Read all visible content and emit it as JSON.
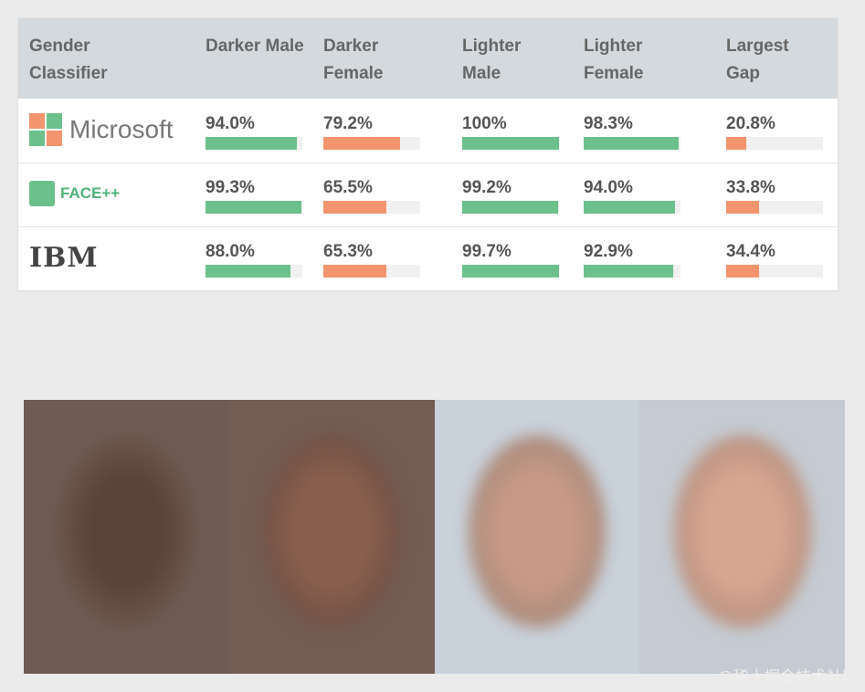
{
  "table": {
    "headers": [
      "Gender Classifier",
      "Darker Male",
      "Darker Female",
      "Lighter Male",
      "Lighter Female",
      "Largest Gap"
    ],
    "bar_colors": [
      "#6cc08b",
      "#f2956e",
      "#6cc08b",
      "#6cc08b",
      "#f2956e"
    ],
    "rows": [
      {
        "name": "Microsoft",
        "cells": [
          {
            "value": 94.0,
            "label": "94.0%"
          },
          {
            "value": 79.2,
            "label": "79.2%"
          },
          {
            "value": 100,
            "label": "100%"
          },
          {
            "value": 98.3,
            "label": "98.3%"
          },
          {
            "value": 20.8,
            "label": "20.8%"
          }
        ]
      },
      {
        "name": "FACE++",
        "cells": [
          {
            "value": 99.3,
            "label": "99.3%"
          },
          {
            "value": 65.5,
            "label": "65.5%"
          },
          {
            "value": 99.2,
            "label": "99.2%"
          },
          {
            "value": 94.0,
            "label": "94.0%"
          },
          {
            "value": 33.8,
            "label": "33.8%"
          }
        ]
      },
      {
        "name": "IBM",
        "cells": [
          {
            "value": 88.0,
            "label": "88.0%"
          },
          {
            "value": 65.3,
            "label": "65.3%"
          },
          {
            "value": 99.7,
            "label": "99.7%"
          },
          {
            "value": 92.9,
            "label": "92.9%"
          },
          {
            "value": 34.4,
            "label": "34.4%"
          }
        ]
      }
    ]
  },
  "watermark": "@稀土掘金技术社区"
}
